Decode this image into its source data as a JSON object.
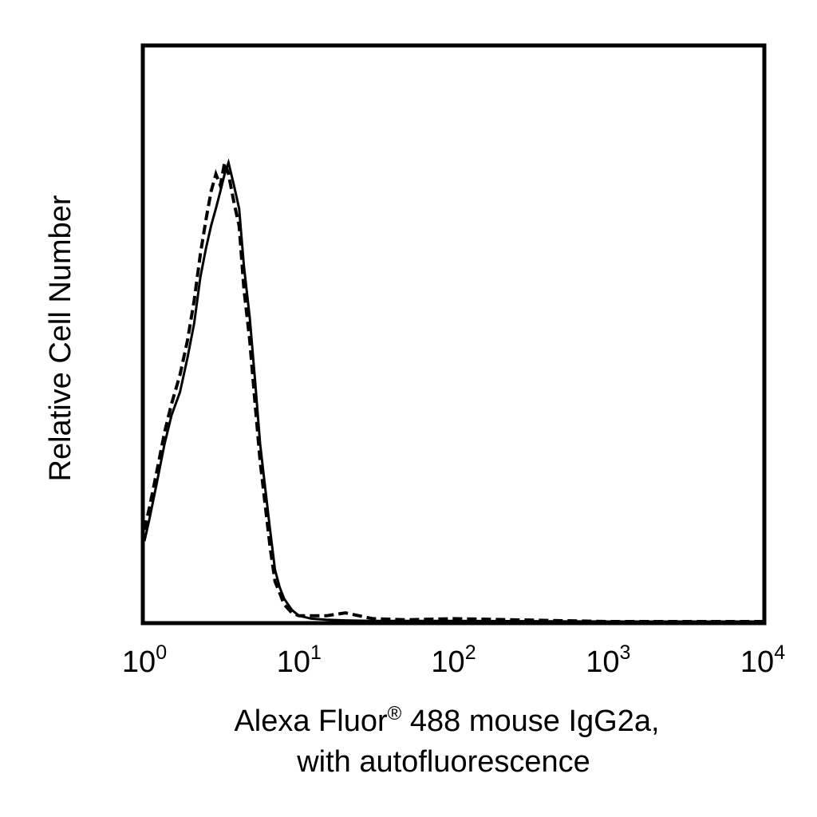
{
  "chart_data": {
    "type": "line",
    "xscale": "log",
    "xlim": [
      1,
      10000
    ],
    "ylim": [
      0,
      100
    ],
    "grid": false,
    "legend": "none",
    "xticks": [
      {
        "base": "10",
        "exp": "0",
        "value": 1
      },
      {
        "base": "10",
        "exp": "1",
        "value": 10
      },
      {
        "base": "10",
        "exp": "2",
        "value": 100
      },
      {
        "base": "10",
        "exp": "3",
        "value": 1000
      },
      {
        "base": "10",
        "exp": "4",
        "value": 10000
      }
    ],
    "xlabel": {
      "line1_pre": "Alexa Fluor",
      "line1_sup": "®",
      "line1_post": " 488 mouse IgG2a,",
      "line2": "with autofluorescence"
    },
    "ylabel": "Relative Cell Number",
    "series": [
      {
        "style": "solid",
        "color": "#000000",
        "x": [
          1.0,
          1.08,
          1.2,
          1.35,
          1.5,
          1.7,
          1.9,
          2.1,
          2.3,
          2.5,
          2.7,
          2.9,
          3.1,
          3.3,
          3.5,
          3.8,
          4.1,
          4.4,
          4.8,
          5.2,
          5.6,
          6.0,
          6.5,
          7.0,
          7.5,
          8.0,
          9.0,
          10.0,
          12.0,
          15.0,
          20.0,
          30.0,
          50.0,
          100.0,
          1000.0,
          10000.0
        ],
        "y": [
          14,
          18,
          24,
          31,
          36,
          40,
          46,
          52,
          60,
          65,
          69,
          72,
          75,
          78,
          80,
          76,
          72,
          62,
          53,
          42,
          31,
          24,
          16,
          9,
          6,
          4,
          2,
          1,
          0.5,
          0.3,
          0.2,
          0.1,
          0.1,
          0.1,
          0,
          0
        ]
      },
      {
        "style": "dashed",
        "color": "#000000",
        "x": [
          1.0,
          1.08,
          1.2,
          1.35,
          1.5,
          1.7,
          1.9,
          2.1,
          2.3,
          2.5,
          2.7,
          2.9,
          3.1,
          3.3,
          3.5,
          3.8,
          4.1,
          4.4,
          4.8,
          5.2,
          5.6,
          6.0,
          6.5,
          7.0,
          7.5,
          8.0,
          9.0,
          10.0,
          12.0,
          15.0,
          20.0,
          30.0,
          50.0,
          100.0,
          1000.0,
          10000.0
        ],
        "y": [
          16,
          20,
          26,
          33,
          38,
          43,
          49,
          56,
          64,
          70,
          75,
          78,
          76,
          80,
          78,
          73,
          69,
          58,
          49,
          38,
          28,
          21,
          13,
          7,
          5,
          3,
          1.5,
          1,
          1,
          1,
          1.5,
          0.5,
          0.3,
          0.5,
          0,
          0
        ]
      }
    ]
  }
}
